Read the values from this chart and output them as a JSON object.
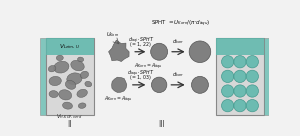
{
  "bg_color": "#f2f2f2",
  "teal_color": "#5db8ac",
  "stone_color": "#808080",
  "stone_border": "#555555",
  "light_gray": "#d8d8d8",
  "box_border": "#888888",
  "arrow_color": "#333333",
  "text_color": "#111111",
  "roman_II": "II",
  "roman_III": "III"
}
